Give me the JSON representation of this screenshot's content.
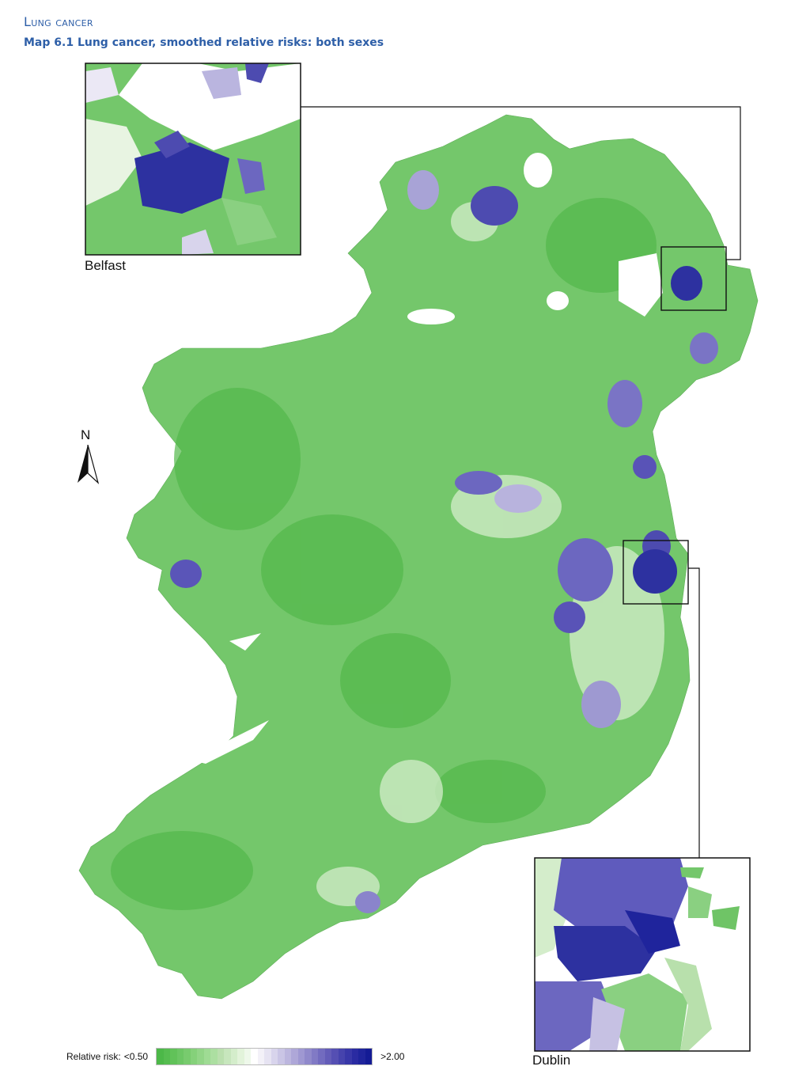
{
  "header": {
    "section": "Lung cancer",
    "map_title": "Map 6.1 Lung cancer, smoothed relative risks: both sexes"
  },
  "north_arrow": {
    "label": "N",
    "icon": "north-arrow-icon"
  },
  "insets": {
    "belfast": {
      "label": "Belfast"
    },
    "dublin": {
      "label": "Dublin"
    }
  },
  "legend": {
    "prefix": "Relative risk:",
    "min_label": "<0.50",
    "max_label": ">2.00",
    "colors": [
      "#4cb848",
      "#56bd50",
      "#61c259",
      "#6cc664",
      "#78cb6e",
      "#85d17a",
      "#92d587",
      "#9fdb94",
      "#acdfa1",
      "#badfae",
      "#c7e6bd",
      "#d4edcb",
      "#e2f3da",
      "#eef8ea",
      "#ffffff",
      "#f3f1f8",
      "#e6e3f2",
      "#d8d4ec",
      "#cac5e5",
      "#bcb6de",
      "#aea7d8",
      "#9f98d2",
      "#9089cb",
      "#817ac5",
      "#726bbf",
      "#635cb8",
      "#554fb3",
      "#4643ad",
      "#3837a8",
      "#2a2ba2",
      "#1f249c",
      "#141b95"
    ]
  },
  "palette": {
    "low": "#4cb848",
    "mid": "#ffffff",
    "high": "#1b2594",
    "title_blue": "#2e5fa8"
  }
}
